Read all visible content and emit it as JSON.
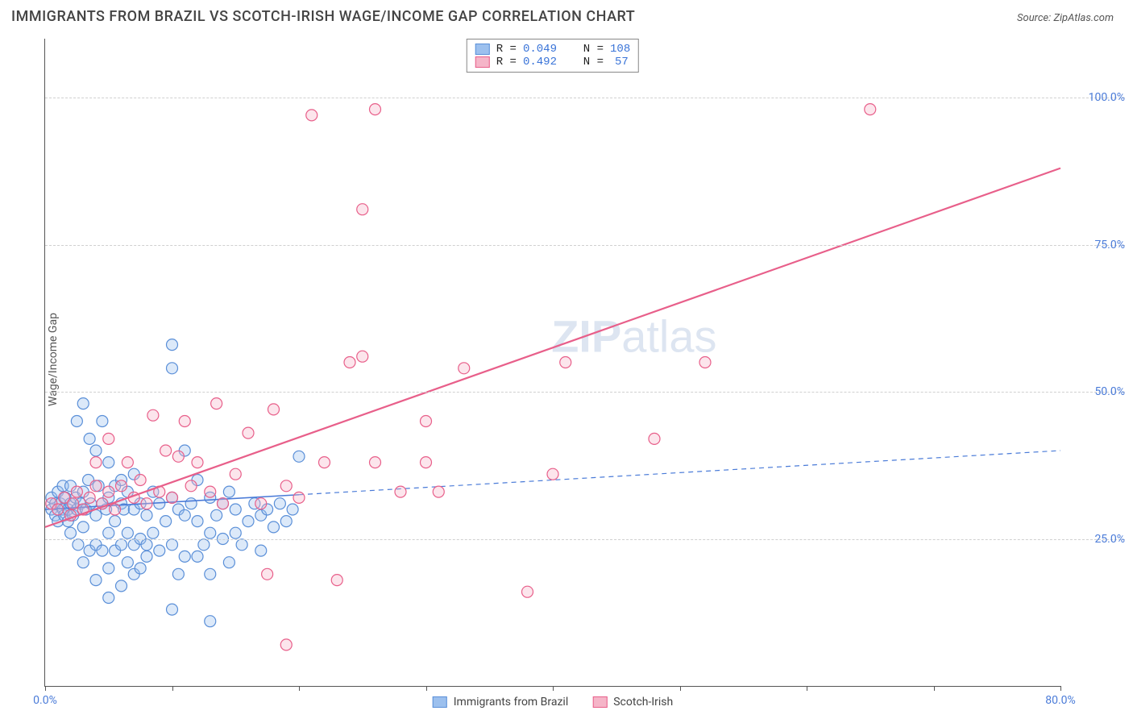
{
  "header": {
    "title": "IMMIGRANTS FROM BRAZIL VS SCOTCH-IRISH WAGE/INCOME GAP CORRELATION CHART",
    "source_label": "Source: ",
    "source_value": "ZipAtlas.com"
  },
  "watermark": {
    "zip": "ZIP",
    "atlas": "atlas"
  },
  "ylabel": "Wage/Income Gap",
  "chart": {
    "type": "scatter",
    "background_color": "#ffffff",
    "grid_color": "#d0d0d0",
    "axis_color": "#555555",
    "xlim": [
      0,
      80
    ],
    "ylim": [
      0,
      110
    ],
    "x_ticks": [
      0,
      10,
      20,
      30,
      40,
      50,
      60,
      70,
      80
    ],
    "x_tick_labels": {
      "0": "0.0%",
      "80": "80.0%"
    },
    "y_ticks": [
      25,
      50,
      75,
      100
    ],
    "y_tick_labels": [
      "25.0%",
      "50.0%",
      "75.0%",
      "100.0%"
    ],
    "tick_label_color": "#4a7bd8",
    "tick_label_fontsize": 14,
    "marker_radius": 7,
    "marker_fill_opacity": 0.35,
    "marker_stroke_width": 1.2,
    "series": [
      {
        "name": "Immigrants from Brazil",
        "color_fill": "#9cc0ee",
        "color_stroke": "#5a8fd8",
        "R": "0.049",
        "N": "108",
        "regression": {
          "solid_from_x": 0,
          "solid_to_x": 20,
          "dashed_from_x": 20,
          "dashed_to_x": 80,
          "y_at_x0": 30,
          "y_at_x80": 40,
          "line_width": 1.6,
          "line_color": "#4a7bd8",
          "dash": "6,5"
        },
        "points": [
          [
            0.5,
            30
          ],
          [
            0.5,
            32
          ],
          [
            0.8,
            29
          ],
          [
            0.8,
            31
          ],
          [
            1,
            33
          ],
          [
            1,
            28
          ],
          [
            1.2,
            31
          ],
          [
            1.4,
            30
          ],
          [
            1.4,
            34
          ],
          [
            1.5,
            29
          ],
          [
            1.6,
            32
          ],
          [
            1.8,
            30
          ],
          [
            1.8,
            28
          ],
          [
            2,
            31
          ],
          [
            2,
            34
          ],
          [
            2,
            26
          ],
          [
            2.2,
            29
          ],
          [
            2.4,
            32
          ],
          [
            2.5,
            30
          ],
          [
            2.5,
            45
          ],
          [
            2.6,
            24
          ],
          [
            2.8,
            31
          ],
          [
            3,
            48
          ],
          [
            3,
            33
          ],
          [
            3,
            27
          ],
          [
            3,
            21
          ],
          [
            3.2,
            30
          ],
          [
            3.4,
            35
          ],
          [
            3.5,
            42
          ],
          [
            3.5,
            23
          ],
          [
            3.6,
            31
          ],
          [
            4,
            40
          ],
          [
            4,
            29
          ],
          [
            4,
            24
          ],
          [
            4,
            18
          ],
          [
            4.2,
            34
          ],
          [
            4.5,
            45
          ],
          [
            4.5,
            31
          ],
          [
            4.5,
            23
          ],
          [
            4.8,
            30
          ],
          [
            5,
            38
          ],
          [
            5,
            32
          ],
          [
            5,
            26
          ],
          [
            5,
            20
          ],
          [
            5,
            15
          ],
          [
            5.5,
            34
          ],
          [
            5.5,
            28
          ],
          [
            5.5,
            23
          ],
          [
            6,
            35
          ],
          [
            6,
            31
          ],
          [
            6,
            24
          ],
          [
            6,
            17
          ],
          [
            6.2,
            30
          ],
          [
            6.5,
            33
          ],
          [
            6.5,
            26
          ],
          [
            6.5,
            21
          ],
          [
            7,
            36
          ],
          [
            7,
            30
          ],
          [
            7,
            24
          ],
          [
            7,
            19
          ],
          [
            7.5,
            31
          ],
          [
            7.5,
            25
          ],
          [
            7.5,
            20
          ],
          [
            8,
            29
          ],
          [
            8,
            22
          ],
          [
            8,
            24
          ],
          [
            8.5,
            33
          ],
          [
            8.5,
            26
          ],
          [
            9,
            31
          ],
          [
            9,
            23
          ],
          [
            9.5,
            28
          ],
          [
            10,
            32
          ],
          [
            10,
            54
          ],
          [
            10,
            58
          ],
          [
            10,
            24
          ],
          [
            10,
            13
          ],
          [
            10.5,
            30
          ],
          [
            10.5,
            19
          ],
          [
            11,
            29
          ],
          [
            11,
            22
          ],
          [
            11,
            40
          ],
          [
            11.5,
            31
          ],
          [
            12,
            28
          ],
          [
            12,
            22
          ],
          [
            12,
            35
          ],
          [
            12.5,
            24
          ],
          [
            13,
            32
          ],
          [
            13,
            26
          ],
          [
            13,
            19
          ],
          [
            13.5,
            29
          ],
          [
            14,
            31
          ],
          [
            14,
            25
          ],
          [
            14.5,
            33
          ],
          [
            14.5,
            21
          ],
          [
            15,
            30
          ],
          [
            15,
            26
          ],
          [
            15.5,
            24
          ],
          [
            16,
            28
          ],
          [
            16.5,
            31
          ],
          [
            17,
            29
          ],
          [
            17,
            23
          ],
          [
            17.5,
            30
          ],
          [
            18,
            27
          ],
          [
            18.5,
            31
          ],
          [
            19,
            28
          ],
          [
            19.5,
            30
          ],
          [
            20,
            39
          ],
          [
            13,
            11
          ]
        ]
      },
      {
        "name": "Scotch-Irish",
        "color_fill": "#f5b5c8",
        "color_stroke": "#e85f8a",
        "R": "0.492",
        "N": "57",
        "regression": {
          "solid_from_x": 0,
          "solid_to_x": 80,
          "y_at_x0": 27,
          "y_at_x80": 88,
          "line_width": 2.2,
          "line_color": "#e85f8a"
        },
        "points": [
          [
            0.5,
            31
          ],
          [
            1,
            30
          ],
          [
            1.5,
            32
          ],
          [
            2,
            29
          ],
          [
            2.2,
            31
          ],
          [
            2.5,
            33
          ],
          [
            3,
            30
          ],
          [
            3.5,
            32
          ],
          [
            4,
            34
          ],
          [
            4,
            38
          ],
          [
            4.5,
            31
          ],
          [
            5,
            33
          ],
          [
            5,
            42
          ],
          [
            5.5,
            30
          ],
          [
            6,
            34
          ],
          [
            6.5,
            38
          ],
          [
            7,
            32
          ],
          [
            7.5,
            35
          ],
          [
            8,
            31
          ],
          [
            8.5,
            46
          ],
          [
            9,
            33
          ],
          [
            9.5,
            40
          ],
          [
            10,
            32
          ],
          [
            11,
            45
          ],
          [
            11.5,
            34
          ],
          [
            12,
            38
          ],
          [
            13,
            33
          ],
          [
            13.5,
            48
          ],
          [
            14,
            31
          ],
          [
            15,
            36
          ],
          [
            16,
            43
          ],
          [
            17,
            31
          ],
          [
            17.5,
            19
          ],
          [
            18,
            47
          ],
          [
            19,
            34
          ],
          [
            20,
            32
          ],
          [
            21,
            97
          ],
          [
            22,
            38
          ],
          [
            23,
            18
          ],
          [
            24,
            55
          ],
          [
            25,
            81
          ],
          [
            25,
            56
          ],
          [
            26,
            98
          ],
          [
            26,
            38
          ],
          [
            28,
            33
          ],
          [
            30,
            45
          ],
          [
            30,
            38
          ],
          [
            31,
            33
          ],
          [
            33,
            54
          ],
          [
            38,
            16
          ],
          [
            40,
            36
          ],
          [
            41,
            55
          ],
          [
            48,
            42
          ],
          [
            52,
            55
          ],
          [
            65,
            98
          ],
          [
            19,
            7
          ],
          [
            10.5,
            39
          ]
        ]
      }
    ]
  },
  "legend_top": {
    "border_color": "#888888",
    "r_label": "R =",
    "n_label": "N ="
  },
  "legend_bottom": {
    "series1_label": "Immigrants from Brazil",
    "series2_label": "Scotch-Irish"
  }
}
